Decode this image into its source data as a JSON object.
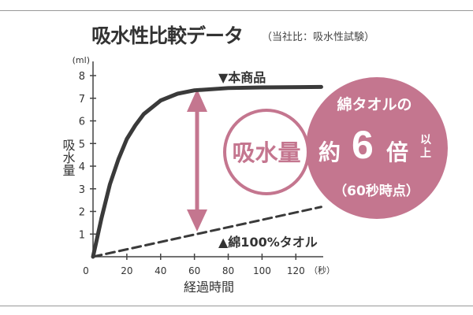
{
  "header": {
    "title": "吸水性比較データ",
    "subtitle": "（当社比：吸水性試験）"
  },
  "chart_data": {
    "type": "line",
    "title": "吸水性比較データ",
    "xlabel": "経過時間",
    "xunit": "（秒）",
    "ylabel": "吸水量",
    "yunit": "(ml)",
    "xlim": [
      0,
      135
    ],
    "ylim": [
      0,
      8
    ],
    "xticks": [
      "0",
      "20",
      "40",
      "60",
      "80",
      "100",
      "120"
    ],
    "yticks": [
      "1",
      "2",
      "3",
      "4",
      "5",
      "6",
      "7",
      "8"
    ],
    "series": [
      {
        "name": "▼本商品",
        "style": "solid",
        "x": [
          0,
          5,
          10,
          15,
          20,
          25,
          30,
          40,
          50,
          60,
          80,
          100,
          135
        ],
        "y": [
          0,
          1.7,
          3.2,
          4.3,
          5.2,
          5.8,
          6.3,
          6.9,
          7.2,
          7.35,
          7.45,
          7.48,
          7.5
        ]
      },
      {
        "name": "▲綿100%タオル",
        "style": "dashed",
        "x": [
          0,
          135
        ],
        "y": [
          0,
          2.2
        ]
      }
    ],
    "annotation": {
      "circle_label": "吸水量",
      "badge_line1": "綿タオルの",
      "badge_prefix": "約",
      "badge_number": "6",
      "badge_suffix": "倍",
      "badge_above": "以上",
      "badge_note": "（60秒時点）"
    },
    "colors": {
      "line": "#3a3a3a",
      "accent": "#c4768f"
    }
  }
}
